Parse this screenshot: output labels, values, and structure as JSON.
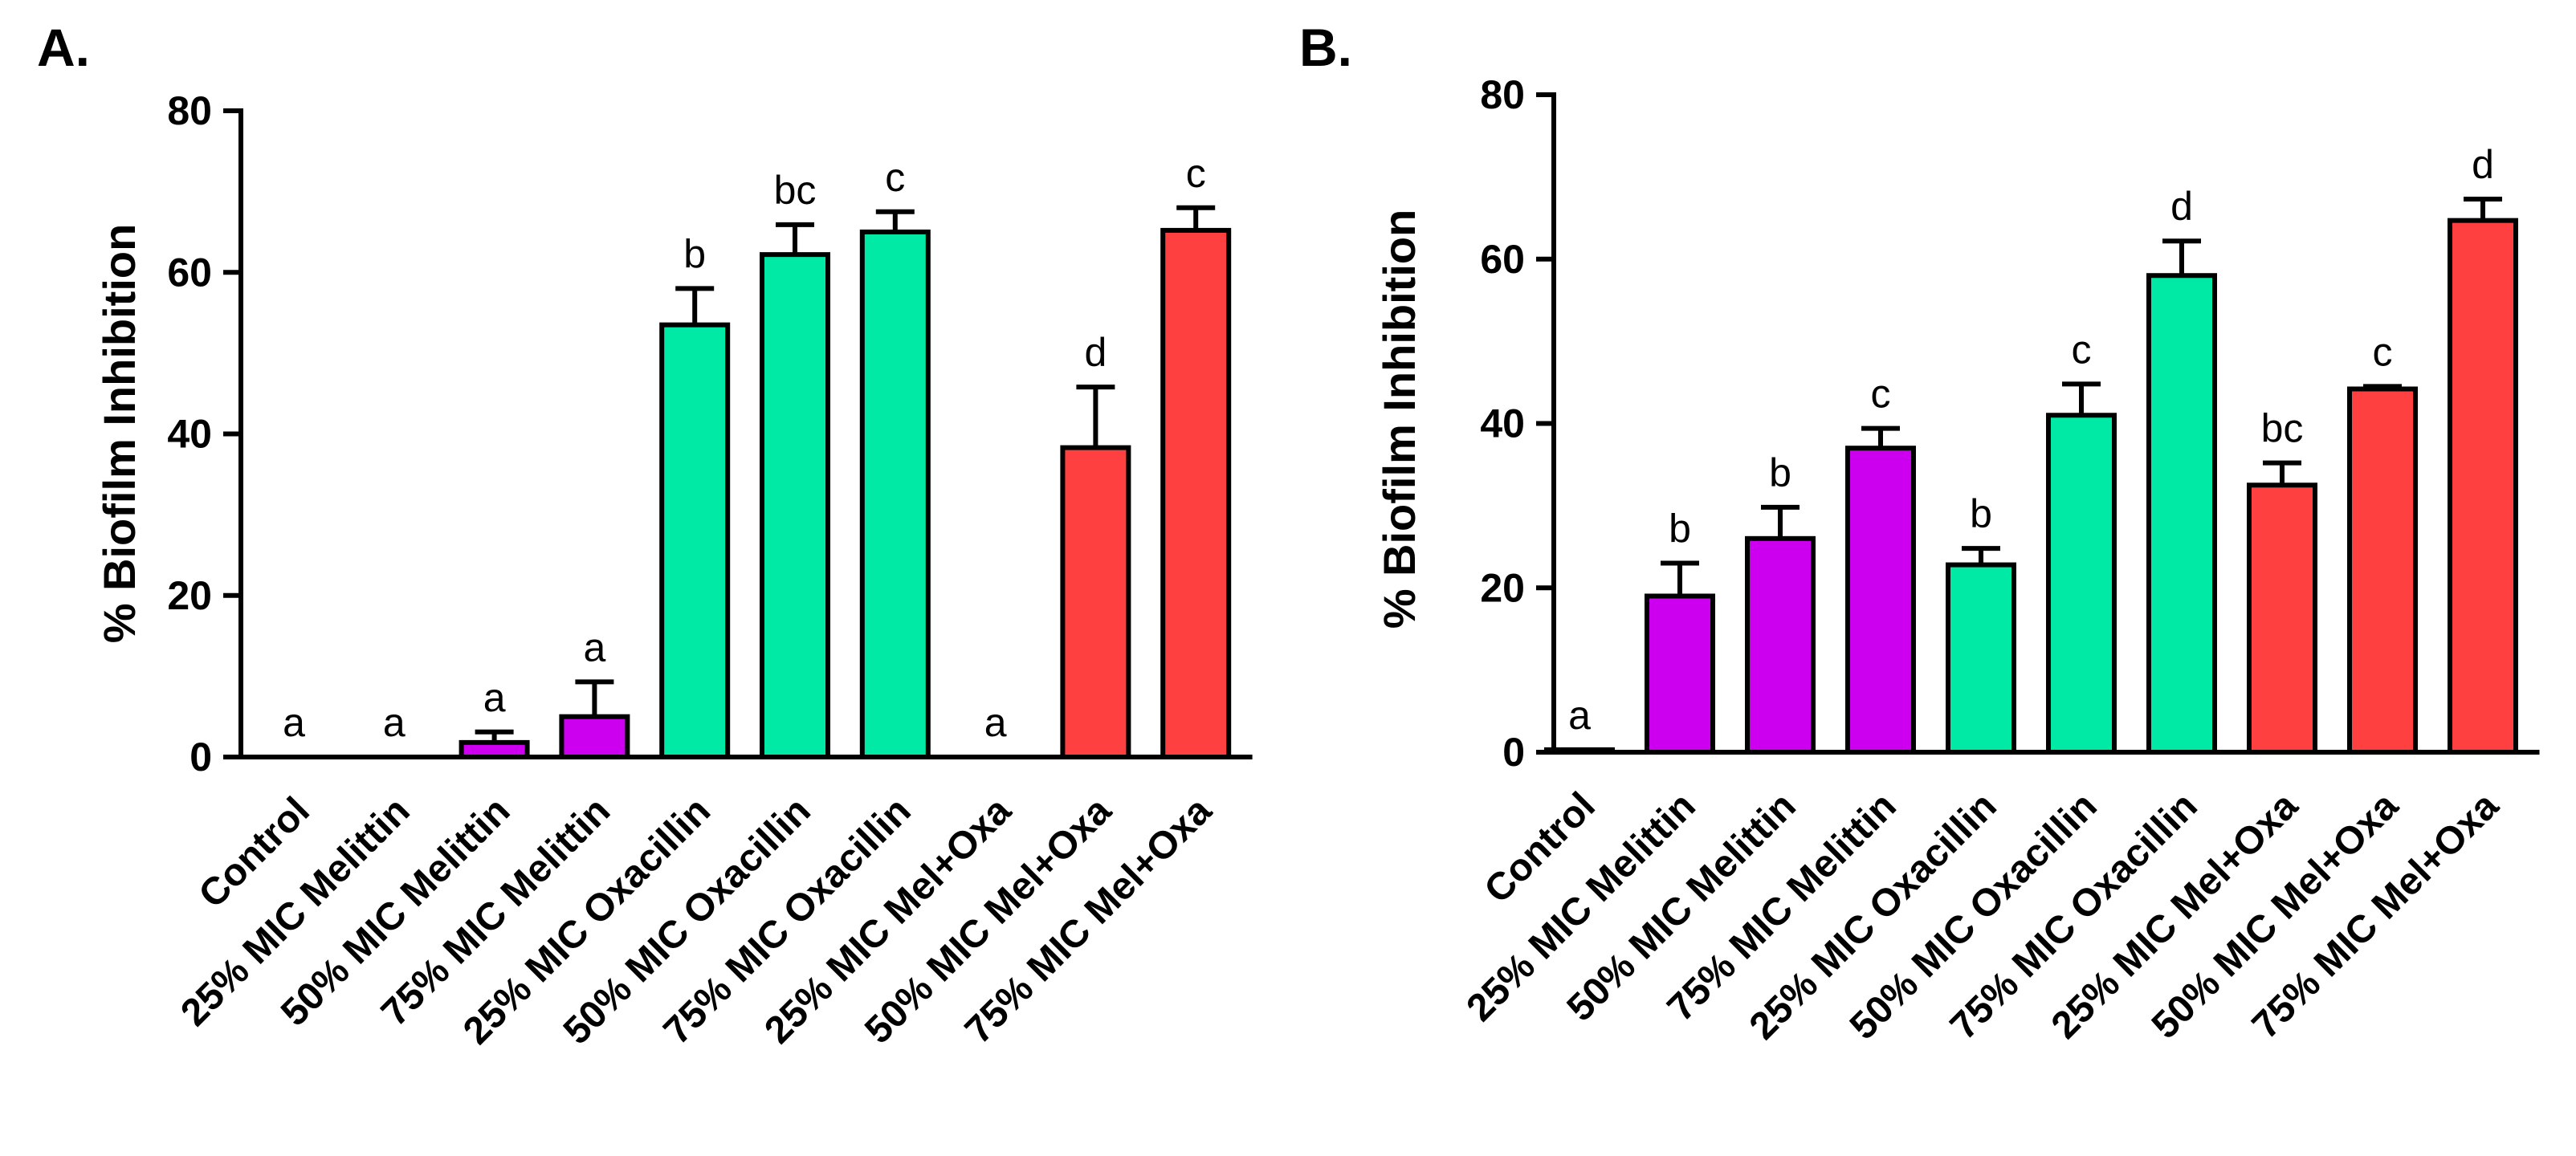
{
  "chart_data": [
    {
      "panel": "A.",
      "type": "bar",
      "ylabel": "% Biofilm Inhibition",
      "ylim": [
        0,
        80
      ],
      "yticks": [
        0,
        20,
        40,
        60,
        80
      ],
      "yticklabels": [
        "0",
        "20",
        "40",
        "60",
        "80"
      ],
      "categories": [
        "Control",
        "25% MIC Melittin",
        "50% MIC Melittin",
        "75% MIC Melittin",
        "25% MIC Oxacillin",
        "50% MIC Oxacillin",
        "75% MIC Oxacillin",
        "25% MIC Mel+Oxa",
        "50% MIC Mel+Oxa",
        "75% MIC Mel+Oxa"
      ],
      "values": [
        0,
        0,
        1.8,
        5,
        53.5,
        62.2,
        65,
        0,
        38.3,
        65.2
      ],
      "errors": [
        0,
        0,
        1.3,
        4.3,
        4.5,
        3.7,
        2.5,
        0,
        7.5,
        2.8
      ],
      "letters": [
        "a",
        "a",
        "a",
        "a",
        "b",
        "bc",
        "c",
        "a",
        "d",
        "c"
      ],
      "colors": [
        "#ffffff",
        "#ffffff",
        "#cc00ee",
        "#cc00ee",
        "#00eaa6",
        "#00eaa6",
        "#00eaa6",
        "#ffffff",
        "#ff4040",
        "#ff4040"
      ]
    },
    {
      "panel": "B.",
      "type": "bar",
      "ylabel": "% Biofilm Inhibition",
      "ylim": [
        0,
        80
      ],
      "yticks": [
        0,
        20,
        40,
        60,
        80
      ],
      "yticklabels": [
        "0",
        "20",
        "40",
        "60",
        "80"
      ],
      "categories": [
        "Control",
        "25% MIC Melittin",
        "50% MIC Melittin",
        "75% MIC Melittin",
        "25% MIC Oxacillin",
        "50% MIC Oxacillin",
        "75% MIC Oxacillin",
        "25% MIC Mel+Oxa",
        "50% MIC Mel+Oxa",
        "75% MIC Mel+Oxa"
      ],
      "values": [
        0.3,
        19,
        26,
        37,
        22.8,
        41,
        58,
        32.5,
        44.2,
        64.7
      ],
      "errors": [
        0,
        4,
        3.8,
        2.4,
        2,
        3.8,
        4.2,
        2.7,
        0.3,
        2.6
      ],
      "letters": [
        "a",
        "b",
        "b",
        "c",
        "b",
        "c",
        "d",
        "bc",
        "c",
        "d"
      ],
      "colors": [
        "#ffffff",
        "#cc00ee",
        "#cc00ee",
        "#cc00ee",
        "#00eaa6",
        "#00eaa6",
        "#00eaa6",
        "#ff4040",
        "#ff4040",
        "#ff4040"
      ]
    }
  ]
}
